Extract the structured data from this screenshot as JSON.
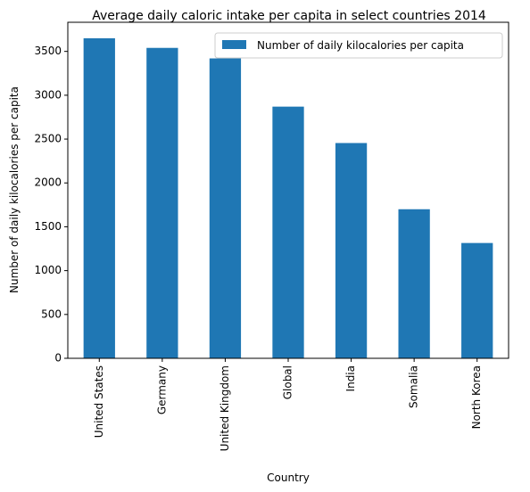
{
  "chart_data": {
    "type": "bar",
    "title": "Average daily caloric intake per capita in select countries 2014",
    "xlabel": "Country",
    "ylabel": "Number of daily kilocalories per capita",
    "categories": [
      "United States",
      "Germany",
      "United Kingdom",
      "Global",
      "India",
      "Somalia",
      "North Korea"
    ],
    "series": [
      {
        "name": "Number of daily kilocalories per capita",
        "color": "#1f77b4",
        "values": [
          3650,
          3540,
          3420,
          2870,
          2455,
          1700,
          1315
        ]
      }
    ],
    "ylim": [
      0,
      3832
    ],
    "yticks": [
      0,
      500,
      1000,
      1500,
      2000,
      2500,
      3000,
      3500
    ],
    "legend": "top-right",
    "grid": false
  }
}
